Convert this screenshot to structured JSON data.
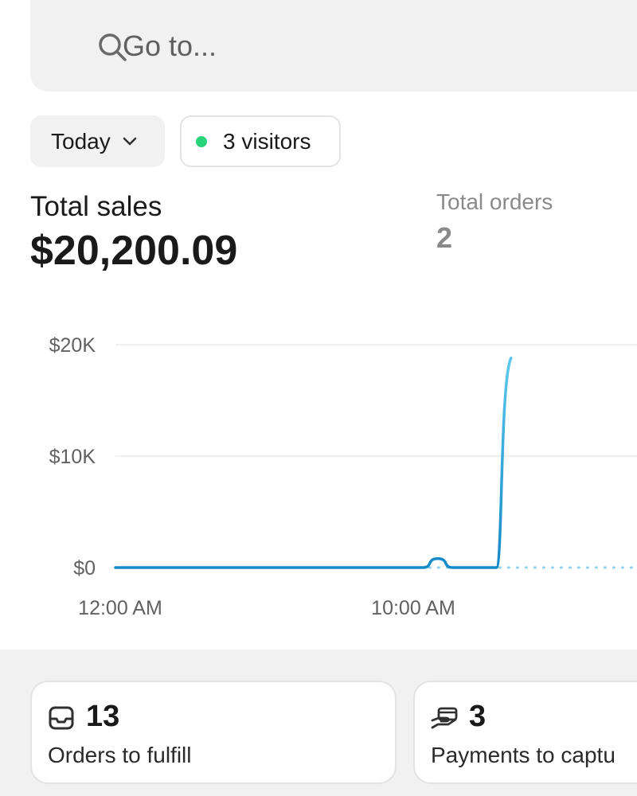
{
  "search": {
    "placeholder": "Go to...",
    "icon": "search-icon"
  },
  "filters": {
    "period_label": "Today",
    "visitors_label": "3 visitors",
    "visitors_dot_color": "#29d37a"
  },
  "metrics": {
    "total_sales_label": "Total sales",
    "total_sales_value": "$20,200.09",
    "total_orders_label": "Total orders",
    "total_orders_value": "2"
  },
  "chart_data": {
    "type": "line",
    "y_tick_labels": [
      "$20K",
      "$10K",
      "$0"
    ],
    "y_ticks": [
      20000,
      10000,
      0
    ],
    "x_tick_labels": [
      "12:00 AM",
      "10:00 AM"
    ],
    "ylim": [
      0,
      20000
    ],
    "grid": true,
    "line_color": "#1a9ad6",
    "series": [
      {
        "x_hours": [
          0,
          10.5,
          11,
          11.5,
          13,
          13.5
        ],
        "values": [
          0,
          0,
          800,
          0,
          0,
          18800
        ]
      }
    ],
    "projection_dotted": true
  },
  "tasks": [
    {
      "icon": "inbox-icon",
      "count": "13",
      "label": "Orders to fulfill"
    },
    {
      "icon": "payment-hand-icon",
      "count": "3",
      "label": "Payments to captu"
    }
  ]
}
